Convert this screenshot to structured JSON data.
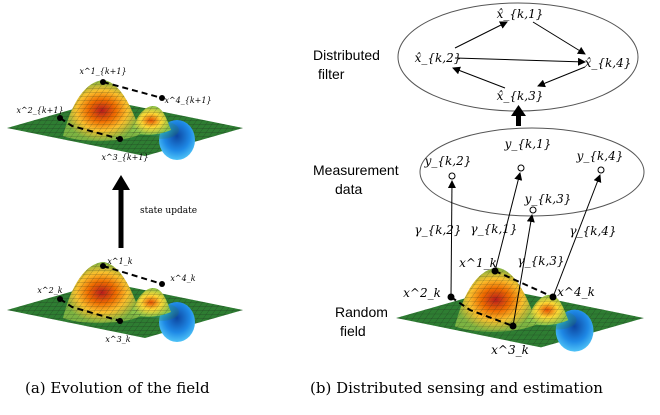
{
  "left": {
    "caption": "(a) Evolution of the field",
    "arrow_label": "state update",
    "top_nodes": [
      "x^1_{k+1}",
      "x^2_{k+1}",
      "x^3_{k+1}",
      "x^4_{k+1}"
    ],
    "bottom_nodes": [
      "x^1_k",
      "x^2_k",
      "x^3_k",
      "x^4_k"
    ]
  },
  "right": {
    "caption": "(b) Distributed sensing and estimation",
    "filter_label": [
      "Distributed",
      "filter"
    ],
    "measurement_label": [
      "Measurement",
      "data"
    ],
    "field_label": [
      "Random",
      "field"
    ],
    "filter_nodes": [
      "x̂_{k,1}",
      "x̂_{k,2}",
      "x̂_{k,3}",
      "x̂_{k,4}"
    ],
    "measurement_nodes": [
      "y_{k,1}",
      "y_{k,2}",
      "y_{k,3}",
      "y_{k,4}"
    ],
    "gammas": [
      "γ_{k,1}",
      "γ_{k,2}",
      "γ_{k,3}",
      "γ_{k,4}"
    ],
    "field_nodes": [
      "x^1_k",
      "x^2_k",
      "x^3_k",
      "x^4_k"
    ]
  },
  "colors": {
    "mesh_low": "#2e7d32",
    "mesh_mid": "#f6d000",
    "mesh_high": "#c62828",
    "valley": "#1565c0"
  }
}
